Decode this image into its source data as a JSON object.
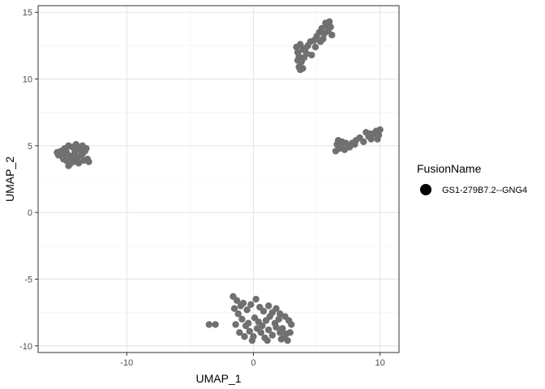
{
  "chart_data": {
    "type": "scatter",
    "title": "",
    "xlabel": "UMAP_1",
    "ylabel": "UMAP_2",
    "xlim": [
      -17,
      11.5
    ],
    "ylim": [
      -10.5,
      15.5
    ],
    "x_ticks": [
      -10,
      0,
      10
    ],
    "y_ticks": [
      -10,
      -5,
      0,
      5,
      10,
      15
    ],
    "x_tick_labels": [
      "-10",
      "0",
      "10"
    ],
    "y_tick_labels": [
      "-10",
      "-5",
      "0",
      "5",
      "10",
      "15"
    ],
    "grid": true,
    "legend": {
      "title": "FusionName",
      "position": "right",
      "entries": [
        "GS1-279B7.2--GNG4"
      ]
    },
    "point_color": "#707070",
    "series": [
      {
        "name": "GS1-279B7.2--GNG4",
        "points": [
          [
            -15.5,
            4.5
          ],
          [
            -15.4,
            4.3
          ],
          [
            -15.2,
            4.6
          ],
          [
            -15.0,
            4.0
          ],
          [
            -14.9,
            4.8
          ],
          [
            -14.8,
            3.9
          ],
          [
            -14.7,
            4.4
          ],
          [
            -14.6,
            5.0
          ],
          [
            -14.5,
            3.6
          ],
          [
            -14.4,
            4.2
          ],
          [
            -14.3,
            4.9
          ],
          [
            -14.2,
            3.8
          ],
          [
            -14.1,
            4.5
          ],
          [
            -14.0,
            5.1
          ],
          [
            -13.9,
            4.1
          ],
          [
            -13.8,
            3.7
          ],
          [
            -13.7,
            4.7
          ],
          [
            -13.6,
            4.3
          ],
          [
            -13.5,
            5.0
          ],
          [
            -13.4,
            3.9
          ],
          [
            -13.3,
            4.6
          ],
          [
            -13.2,
            4.8
          ],
          [
            -13.1,
            4.0
          ],
          [
            -13.0,
            3.8
          ],
          [
            -14.6,
            3.5
          ],
          [
            -15.1,
            4.2
          ],
          [
            -14.3,
            4.0
          ],
          [
            -13.9,
            4.9
          ],
          [
            -14.8,
            4.6
          ],
          [
            -13.5,
            4.4
          ],
          [
            3.4,
            12.4
          ],
          [
            3.5,
            12.0
          ],
          [
            3.6,
            11.7
          ],
          [
            3.7,
            12.6
          ],
          [
            3.8,
            11.3
          ],
          [
            3.6,
            10.9
          ],
          [
            3.9,
            12.2
          ],
          [
            4.0,
            11.6
          ],
          [
            3.7,
            10.7
          ],
          [
            4.1,
            12.3
          ],
          [
            4.2,
            11.9
          ],
          [
            3.5,
            11.4
          ],
          [
            4.3,
            12.5
          ],
          [
            4.5,
            12.8
          ],
          [
            4.8,
            12.9
          ],
          [
            5.0,
            13.2
          ],
          [
            5.2,
            13.5
          ],
          [
            5.4,
            13.8
          ],
          [
            5.6,
            13.4
          ],
          [
            5.8,
            14.0
          ],
          [
            6.0,
            14.3
          ],
          [
            5.5,
            13.0
          ],
          [
            5.9,
            13.6
          ],
          [
            6.1,
            13.9
          ],
          [
            5.3,
            12.8
          ],
          [
            4.9,
            12.4
          ],
          [
            6.2,
            13.3
          ],
          [
            5.7,
            14.2
          ],
          [
            4.6,
            11.8
          ],
          [
            3.9,
            10.8
          ],
          [
            6.5,
            4.6
          ],
          [
            6.6,
            5.1
          ],
          [
            6.8,
            4.8
          ],
          [
            7.0,
            5.3
          ],
          [
            7.2,
            4.7
          ],
          [
            7.5,
            5.0
          ],
          [
            7.8,
            5.2
          ],
          [
            8.1,
            5.4
          ],
          [
            8.4,
            5.6
          ],
          [
            8.7,
            5.3
          ],
          [
            8.9,
            6.0
          ],
          [
            9.1,
            5.7
          ],
          [
            9.3,
            5.5
          ],
          [
            9.5,
            5.9
          ],
          [
            9.7,
            6.1
          ],
          [
            9.9,
            5.8
          ],
          [
            10.0,
            6.2
          ],
          [
            6.7,
            5.4
          ],
          [
            7.3,
            5.2
          ],
          [
            8.0,
            5.1
          ],
          [
            9.2,
            5.9
          ],
          [
            6.9,
            4.9
          ],
          [
            9.8,
            5.5
          ],
          [
            7.6,
            4.9
          ],
          [
            -3.5,
            -8.4
          ],
          [
            -3.0,
            -8.4
          ],
          [
            -1.6,
            -6.3
          ],
          [
            -1.3,
            -6.6
          ],
          [
            -1.0,
            -7.0
          ],
          [
            -0.8,
            -6.8
          ],
          [
            -0.5,
            -7.3
          ],
          [
            -0.2,
            -6.9
          ],
          [
            0.2,
            -6.5
          ],
          [
            0.5,
            -7.1
          ],
          [
            0.8,
            -7.4
          ],
          [
            1.2,
            -7.0
          ],
          [
            1.5,
            -7.5
          ],
          [
            1.8,
            -7.2
          ],
          [
            2.1,
            -7.6
          ],
          [
            2.5,
            -7.8
          ],
          [
            2.8,
            -8.1
          ],
          [
            3.0,
            -8.4
          ],
          [
            -1.5,
            -7.2
          ],
          [
            -1.2,
            -7.6
          ],
          [
            -0.9,
            -8.0
          ],
          [
            -0.6,
            -8.5
          ],
          [
            -0.3,
            -8.9
          ],
          [
            0.0,
            -9.3
          ],
          [
            0.3,
            -8.7
          ],
          [
            0.6,
            -9.0
          ],
          [
            0.9,
            -9.4
          ],
          [
            1.2,
            -8.8
          ],
          [
            1.5,
            -9.2
          ],
          [
            1.8,
            -8.6
          ],
          [
            2.1,
            -9.0
          ],
          [
            2.4,
            -9.4
          ],
          [
            2.7,
            -9.6
          ],
          [
            -1.1,
            -9.0
          ],
          [
            -0.7,
            -9.3
          ],
          [
            -0.4,
            -8.3
          ],
          [
            0.1,
            -7.9
          ],
          [
            0.4,
            -8.2
          ],
          [
            0.7,
            -8.5
          ],
          [
            1.0,
            -8.1
          ],
          [
            1.3,
            -7.8
          ],
          [
            1.7,
            -8.3
          ],
          [
            2.0,
            -8.0
          ],
          [
            2.3,
            -8.7
          ],
          [
            2.6,
            -9.1
          ],
          [
            2.9,
            -9.0
          ],
          [
            -1.4,
            -8.4
          ],
          [
            -0.1,
            -9.6
          ],
          [
            1.1,
            -9.6
          ],
          [
            2.2,
            -9.5
          ]
        ]
      }
    ]
  }
}
